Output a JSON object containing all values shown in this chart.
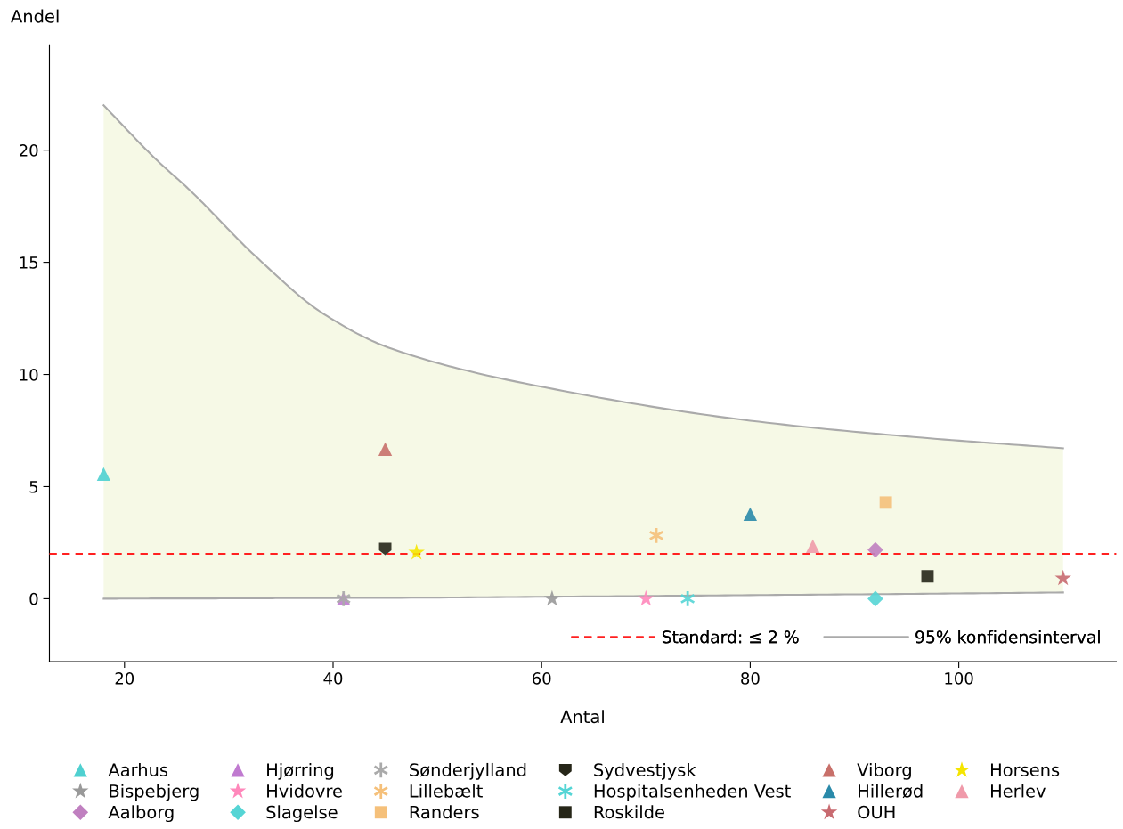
{
  "chart_data": {
    "type": "scatter",
    "xlabel": "Antal",
    "ylabel": "Andel",
    "xlim": [
      12.8,
      115.1
    ],
    "ylim": [
      -2.8,
      24.7
    ],
    "xticks": [
      20,
      40,
      60,
      80,
      100
    ],
    "yticks": [
      0,
      5,
      10,
      15,
      20
    ],
    "grid": false,
    "legend": "bottom",
    "ref_lines": [
      {
        "axis": "y",
        "value": 2,
        "label": "Standard: ≤ 2 %",
        "color": "#ff2020",
        "line_style": "dashed"
      }
    ],
    "series": [
      {
        "type": "area",
        "color": "#f6f9e6",
        "x": [
          18,
          23,
          26.3,
          32.5,
          39.1,
          45.6,
          64,
          80,
          96.5,
          110
        ],
        "values": [
          null,
          null,
          null,
          null,
          null,
          null,
          null,
          null,
          null,
          null
        ],
        "upper": [
          22.0,
          19.6,
          18.2,
          15.3,
          12.7,
          11.15,
          9.1,
          7.94,
          7.18,
          6.71
        ],
        "lower": [
          0,
          0.01,
          0.01,
          0.02,
          0.03,
          0.04,
          0.1,
          0.16,
          0.22,
          0.28
        ]
      },
      {
        "name": "95% konfidensinterval",
        "type": "line",
        "color": "#aaaaaa",
        "x": [
          18,
          23,
          26.3,
          32.5,
          39.1,
          45.6,
          64,
          80,
          96.5,
          110
        ],
        "values": [
          22.0,
          19.6,
          18.2,
          15.3,
          12.7,
          11.15,
          9.1,
          7.94,
          7.18,
          6.71
        ]
      },
      {
        "type": "line",
        "color": "#aaaaaa",
        "x": [
          18,
          23,
          26.3,
          32.5,
          39.1,
          45.6,
          64,
          80,
          96.5,
          110
        ],
        "values": [
          0,
          0.01,
          0.01,
          0.02,
          0.03,
          0.04,
          0.1,
          0.16,
          0.22,
          0.28
        ]
      },
      {
        "name": "Aarhus",
        "color": "#4fd0d0",
        "marker": "triangle",
        "x": [
          18
        ],
        "values": [
          5.56
        ]
      },
      {
        "name": "Bispebjerg",
        "color": "#999999",
        "marker": "star",
        "x": [
          61
        ],
        "values": [
          0
        ]
      },
      {
        "name": "Aalborg",
        "color": "#c080c0",
        "marker": "diamond",
        "x": [
          92
        ],
        "values": [
          2.18
        ]
      },
      {
        "name": "Hjørring",
        "color": "#c07ad0",
        "marker": "triangle",
        "x": [
          41
        ],
        "values": [
          0
        ]
      },
      {
        "name": "Hvidovre",
        "color": "#ff88bb",
        "marker": "star",
        "x": [
          70
        ],
        "values": [
          0
        ]
      },
      {
        "name": "Slagelse",
        "color": "#55d5d5",
        "marker": "diamond",
        "x": [
          92
        ],
        "values": [
          0
        ]
      },
      {
        "name": "Sønderjylland",
        "color": "#aaaaaa",
        "marker": "cross",
        "x": [
          41
        ],
        "values": [
          0
        ]
      },
      {
        "name": "Lillebælt",
        "color": "#f5c07a",
        "marker": "cross",
        "x": [
          71
        ],
        "values": [
          2.82
        ]
      },
      {
        "name": "Randers",
        "color": "#f5c07a",
        "marker": "square",
        "x": [
          93
        ],
        "values": [
          4.29
        ]
      },
      {
        "name": "Sydvestjysk",
        "color": "#262618",
        "x": [
          45
        ],
        "values": [
          2.22
        ]
      },
      {
        "name": "Hospitalsenheden Vest",
        "color": "#55d5d5",
        "marker": "cross",
        "x": [
          74
        ],
        "values": [
          0
        ]
      },
      {
        "name": "Roskilde",
        "color": "#262618",
        "marker": "square",
        "x": [
          97
        ],
        "values": [
          1.0
        ]
      },
      {
        "name": "Viborg",
        "color": "#c8706a",
        "marker": "triangle",
        "x": [
          45
        ],
        "values": [
          6.67
        ]
      },
      {
        "name": "Hillerød",
        "color": "#2a8aaa",
        "marker": "triangle",
        "x": [
          80
        ],
        "values": [
          3.77
        ]
      },
      {
        "name": "OUH",
        "color": "#c86a70",
        "marker": "star",
        "x": [
          110
        ],
        "values": [
          0.91
        ]
      },
      {
        "name": "Horsens",
        "color": "#f5e500",
        "marker": "star",
        "x": [
          48
        ],
        "values": [
          2.06
        ]
      },
      {
        "name": "Herlev",
        "color": "#f09aaa",
        "marker": "triangle",
        "x": [
          86
        ],
        "values": [
          2.34
        ]
      }
    ]
  }
}
